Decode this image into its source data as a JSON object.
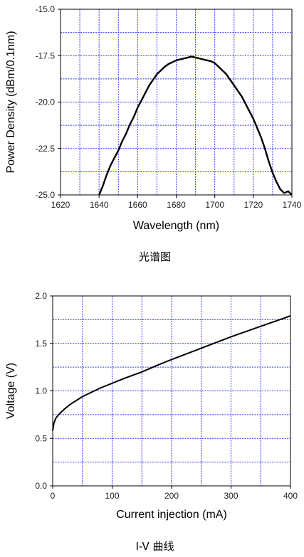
{
  "chart_data": [
    {
      "type": "line",
      "caption": "光谱图",
      "xlabel": "Wavelength (nm)",
      "ylabel": "Power Density (dBm/0.1nm)",
      "xlim": [
        1620,
        1740
      ],
      "ylim": [
        -25.0,
        -15.0
      ],
      "xticks": [
        1620,
        1640,
        1660,
        1680,
        1700,
        1720,
        1740
      ],
      "yticks": [
        -25.0,
        -22.5,
        -20.0,
        -17.5,
        -15.0
      ],
      "ytick_labels": [
        "-25.0",
        "-22.5",
        "-20.0",
        "-17.5",
        "-15.0"
      ],
      "grid": true,
      "grid_color": "#3333ff",
      "line_color": "#000000",
      "series": [
        {
          "x": [
            1640,
            1642,
            1644,
            1646,
            1648,
            1650,
            1652,
            1654,
            1656,
            1658,
            1660,
            1662,
            1664,
            1666,
            1668,
            1670,
            1672,
            1674,
            1676,
            1678,
            1680,
            1682,
            1684,
            1686,
            1688,
            1690,
            1692,
            1694,
            1696,
            1698,
            1700,
            1702,
            1704,
            1706,
            1708,
            1710,
            1712,
            1714,
            1716,
            1718,
            1720,
            1722,
            1724,
            1726,
            1728,
            1730,
            1732,
            1734,
            1736,
            1738,
            1740
          ],
          "y": [
            -25.0,
            -24.5,
            -23.9,
            -23.4,
            -23.0,
            -22.6,
            -22.1,
            -21.7,
            -21.2,
            -20.8,
            -20.3,
            -19.9,
            -19.5,
            -19.1,
            -18.8,
            -18.5,
            -18.3,
            -18.1,
            -17.95,
            -17.85,
            -17.75,
            -17.7,
            -17.65,
            -17.6,
            -17.55,
            -17.6,
            -17.65,
            -17.7,
            -17.75,
            -17.8,
            -17.9,
            -18.1,
            -18.3,
            -18.5,
            -18.8,
            -19.1,
            -19.4,
            -19.7,
            -20.1,
            -20.5,
            -20.9,
            -21.4,
            -21.9,
            -22.5,
            -23.2,
            -23.8,
            -24.3,
            -24.7,
            -24.9,
            -24.8,
            -25.0
          ]
        }
      ]
    },
    {
      "type": "line",
      "caption": "I-V 曲线",
      "xlabel": "Current injection (mA)",
      "ylabel": "Voltage (V)",
      "xlim": [
        0,
        400
      ],
      "ylim": [
        0.0,
        2.0
      ],
      "xticks": [
        0,
        100,
        200,
        300,
        400
      ],
      "yticks": [
        0.0,
        0.5,
        1.0,
        1.5,
        2.0
      ],
      "ytick_labels": [
        "0.0",
        "0.5",
        "1.0",
        "1.5",
        "2.0"
      ],
      "grid": true,
      "grid_color": "#3333ff",
      "line_color": "#000000",
      "series": [
        {
          "x": [
            0,
            2,
            5,
            10,
            15,
            20,
            30,
            40,
            50,
            60,
            80,
            100,
            120,
            150,
            180,
            200,
            250,
            300,
            350,
            400
          ],
          "y": [
            0.58,
            0.66,
            0.71,
            0.75,
            0.78,
            0.81,
            0.86,
            0.9,
            0.94,
            0.97,
            1.03,
            1.08,
            1.13,
            1.2,
            1.28,
            1.33,
            1.45,
            1.57,
            1.68,
            1.79
          ]
        }
      ]
    }
  ]
}
